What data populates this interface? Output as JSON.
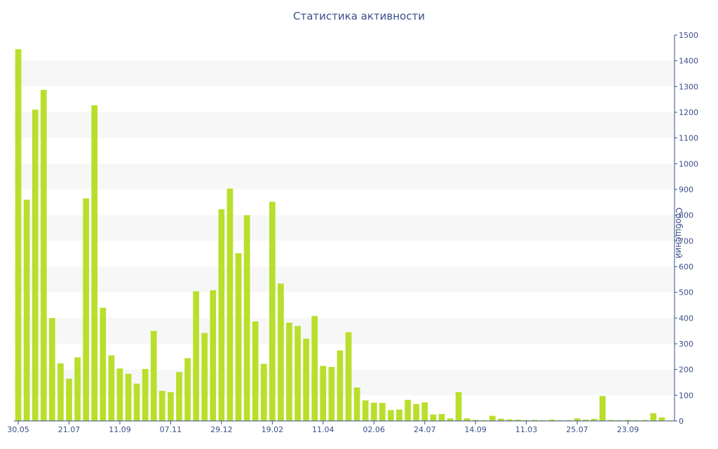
{
  "chart_data": {
    "type": "bar",
    "title": "Статистика активности",
    "xlabel": "",
    "ylabel": "Сообщений",
    "ylim": [
      0,
      1500
    ],
    "y_ticks": [
      0,
      100,
      200,
      300,
      400,
      500,
      600,
      700,
      800,
      900,
      1000,
      1100,
      1200,
      1300,
      1400,
      1500
    ],
    "x_tick_labels": [
      {
        "index": 0,
        "label": "30.05"
      },
      {
        "index": 6,
        "label": "21.07"
      },
      {
        "index": 12,
        "label": "11.09"
      },
      {
        "index": 18,
        "label": "07.11"
      },
      {
        "index": 24,
        "label": "29.12"
      },
      {
        "index": 30,
        "label": "19.02"
      },
      {
        "index": 36,
        "label": "11.04"
      },
      {
        "index": 42,
        "label": "02.06"
      },
      {
        "index": 48,
        "label": "24.07"
      },
      {
        "index": 54,
        "label": "14.09"
      },
      {
        "index": 60,
        "label": "11.03"
      },
      {
        "index": 66,
        "label": "25.07"
      },
      {
        "index": 72,
        "label": "23.09"
      }
    ],
    "grid": "horizontal bands",
    "axis_position": "right",
    "bar_color": "#b8df2b",
    "values": [
      1445,
      860,
      1210,
      1287,
      400,
      224,
      164,
      247,
      865,
      1227,
      440,
      255,
      204,
      183,
      145,
      202,
      350,
      117,
      112,
      190,
      244,
      504,
      342,
      508,
      823,
      903,
      652,
      800,
      387,
      222,
      852,
      534,
      382,
      369,
      320,
      408,
      214,
      210,
      274,
      345,
      130,
      80,
      71,
      70,
      42,
      44,
      82,
      66,
      72,
      25,
      27,
      10,
      112,
      10,
      4,
      3,
      20,
      9,
      6,
      5,
      3,
      4,
      3,
      5,
      3,
      3,
      10,
      5,
      8,
      97,
      4,
      3,
      4,
      3,
      4,
      30,
      14,
      2
    ]
  }
}
